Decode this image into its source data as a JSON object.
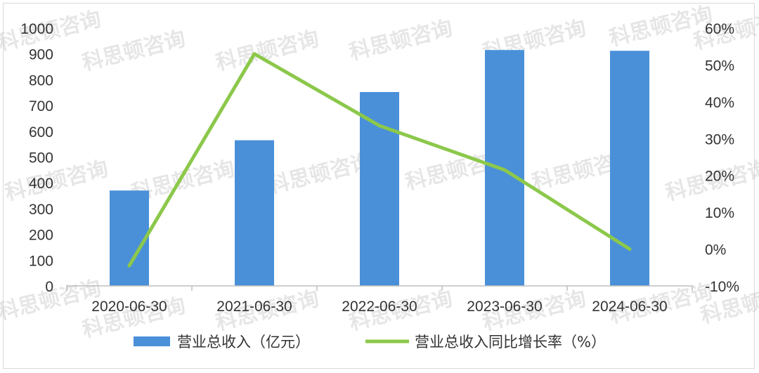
{
  "chart_data": {
    "type": "bar",
    "categories": [
      "2020-06-30",
      "2021-06-30",
      "2022-06-30",
      "2023-06-30",
      "2024-06-30"
    ],
    "series": [
      {
        "name": "营业总收入（亿元）",
        "type": "bar",
        "axis": "left",
        "color": "#4a90d9",
        "values": [
          370,
          565,
          752,
          915,
          912
        ]
      },
      {
        "name": "营业总收入同比增长率（%）",
        "type": "line",
        "axis": "right",
        "color": "#8cc84b",
        "values": [
          -4.5,
          53,
          33.5,
          21.5,
          0
        ]
      }
    ],
    "y_left": {
      "min": 0,
      "max": 1000,
      "ticks": [
        0,
        100,
        200,
        300,
        400,
        500,
        600,
        700,
        800,
        900,
        1000
      ],
      "tick_labels": [
        "0",
        "100",
        "200",
        "300",
        "400",
        "500",
        "600",
        "700",
        "800",
        "900",
        "1000"
      ]
    },
    "y_right": {
      "min": -10,
      "max": 60,
      "ticks": [
        -10,
        0,
        10,
        20,
        30,
        40,
        50,
        60
      ],
      "tick_labels": [
        "-10%",
        "0%",
        "10%",
        "20%",
        "30%",
        "40%",
        "50%",
        "60%"
      ]
    },
    "legend_position": "bottom",
    "grid": false,
    "watermark": "科思顿咨询"
  }
}
